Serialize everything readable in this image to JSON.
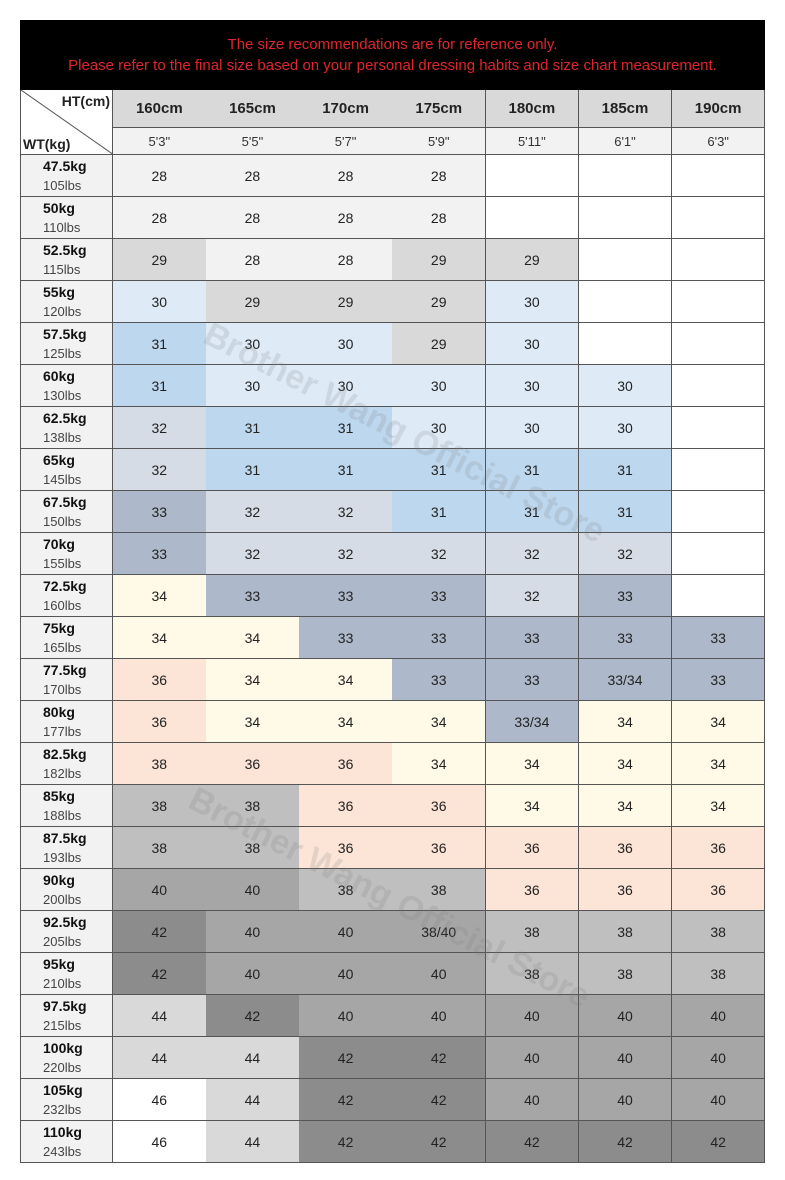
{
  "header": {
    "notice": [
      "The size recommendations are for reference only.",
      "Please refer to the final size based on your personal dressing habits and size chart measurement."
    ]
  },
  "table": {
    "corner_top": "HT(cm)",
    "corner_bottom": "WT(kg)",
    "heights_cm": [
      "160cm",
      "165cm",
      "170cm",
      "175cm",
      "180cm",
      "185cm",
      "190cm"
    ],
    "heights_ft": [
      "5'3\"",
      "5'5\"",
      "5'7\"",
      "5'9\"",
      "5'11\"",
      "6'1\"",
      "6'3\""
    ],
    "rows": [
      {
        "kg": "47.5kg",
        "lbs": "105lbs",
        "cells": [
          "28",
          "28",
          "28",
          "28",
          null,
          null,
          null
        ],
        "colors": [
          "#f2f2f2",
          "#f2f2f2",
          "#f2f2f2",
          "#f2f2f2",
          "#ffffff",
          "#ffffff",
          "#ffffff"
        ]
      },
      {
        "kg": "50kg",
        "lbs": "110lbs",
        "cells": [
          "28",
          "28",
          "28",
          "28",
          null,
          null,
          null
        ],
        "colors": [
          "#f2f2f2",
          "#f2f2f2",
          "#f2f2f2",
          "#f2f2f2",
          "#ffffff",
          "#ffffff",
          "#ffffff"
        ]
      },
      {
        "kg": "52.5kg",
        "lbs": "115lbs",
        "cells": [
          "29",
          "28",
          "28",
          "29",
          "29",
          null,
          null
        ],
        "colors": [
          "#d9d9d9",
          "#f2f2f2",
          "#f2f2f2",
          "#d9d9d9",
          "#d9d9d9",
          "#ffffff",
          "#ffffff"
        ]
      },
      {
        "kg": "55kg",
        "lbs": "120lbs",
        "cells": [
          "30",
          "29",
          "29",
          "29",
          "30",
          null,
          null
        ],
        "colors": [
          "#deebf7",
          "#d9d9d9",
          "#d9d9d9",
          "#d9d9d9",
          "#deebf7",
          "#ffffff",
          "#ffffff"
        ]
      },
      {
        "kg": "57.5kg",
        "lbs": "125lbs",
        "cells": [
          "31",
          "30",
          "30",
          "29",
          "30",
          null,
          null
        ],
        "colors": [
          "#bdd7ee",
          "#deebf7",
          "#deebf7",
          "#d9d9d9",
          "#deebf7",
          "#ffffff",
          "#ffffff"
        ]
      },
      {
        "kg": "60kg",
        "lbs": "130lbs",
        "cells": [
          "31",
          "30",
          "30",
          "30",
          "30",
          "30",
          null
        ],
        "colors": [
          "#bdd7ee",
          "#deebf7",
          "#deebf7",
          "#deebf7",
          "#deebf7",
          "#deebf7",
          "#ffffff"
        ]
      },
      {
        "kg": "62.5kg",
        "lbs": "138lbs",
        "cells": [
          "32",
          "31",
          "31",
          "30",
          "30",
          "30",
          null
        ],
        "colors": [
          "#d6dce5",
          "#bdd7ee",
          "#bdd7ee",
          "#deebf7",
          "#deebf7",
          "#deebf7",
          "#ffffff"
        ]
      },
      {
        "kg": "65kg",
        "lbs": "145lbs",
        "cells": [
          "32",
          "31",
          "31",
          "31",
          "31",
          "31",
          null
        ],
        "colors": [
          "#d6dce5",
          "#bdd7ee",
          "#bdd7ee",
          "#bdd7ee",
          "#bdd7ee",
          "#bdd7ee",
          "#ffffff"
        ]
      },
      {
        "kg": "67.5kg",
        "lbs": "150lbs",
        "cells": [
          "33",
          "32",
          "32",
          "31",
          "31",
          "31",
          null
        ],
        "colors": [
          "#adb9ca",
          "#d6dce5",
          "#d6dce5",
          "#bdd7ee",
          "#bdd7ee",
          "#bdd7ee",
          "#ffffff"
        ]
      },
      {
        "kg": "70kg",
        "lbs": "155lbs",
        "cells": [
          "33",
          "32",
          "32",
          "32",
          "32",
          "32",
          null
        ],
        "colors": [
          "#adb9ca",
          "#d6dce5",
          "#d6dce5",
          "#d6dce5",
          "#d6dce5",
          "#d6dce5",
          "#ffffff"
        ]
      },
      {
        "kg": "72.5kg",
        "lbs": "160lbs",
        "cells": [
          "34",
          "33",
          "33",
          "33",
          "32",
          "33",
          null
        ],
        "colors": [
          "#fff9e8",
          "#adb9ca",
          "#adb9ca",
          "#adb9ca",
          "#d6dce5",
          "#adb9ca",
          "#ffffff"
        ]
      },
      {
        "kg": "75kg",
        "lbs": "165lbs",
        "cells": [
          "34",
          "34",
          "33",
          "33",
          "33",
          "33",
          "33"
        ],
        "colors": [
          "#fff9e8",
          "#fff9e8",
          "#adb9ca",
          "#adb9ca",
          "#adb9ca",
          "#adb9ca",
          "#adb9ca"
        ]
      },
      {
        "kg": "77.5kg",
        "lbs": "170lbs",
        "cells": [
          "36",
          "34",
          "34",
          "33",
          "33",
          "33/34",
          "33"
        ],
        "colors": [
          "#fce4d6",
          "#fff9e8",
          "#fff9e8",
          "#adb9ca",
          "#adb9ca",
          "#adb9ca",
          "#adb9ca"
        ]
      },
      {
        "kg": "80kg",
        "lbs": "177lbs",
        "cells": [
          "36",
          "34",
          "34",
          "34",
          "33/34",
          "34",
          "34"
        ],
        "colors": [
          "#fce4d6",
          "#fff9e8",
          "#fff9e8",
          "#fff9e8",
          "#adb9ca",
          "#fff9e8",
          "#fff9e8"
        ]
      },
      {
        "kg": "82.5kg",
        "lbs": "182lbs",
        "cells": [
          "38",
          "36",
          "36",
          "34",
          "34",
          "34",
          "34"
        ],
        "colors": [
          "#fce4d6",
          "#fce4d6",
          "#fce4d6",
          "#fff9e8",
          "#fff9e8",
          "#fff9e8",
          "#fff9e8"
        ]
      },
      {
        "kg": "85kg",
        "lbs": "188lbs",
        "cells": [
          "38",
          "38",
          "36",
          "36",
          "34",
          "34",
          "34"
        ],
        "colors": [
          "#bfbfbf",
          "#bfbfbf",
          "#fce4d6",
          "#fce4d6",
          "#fff9e8",
          "#fff9e8",
          "#fff9e8"
        ]
      },
      {
        "kg": "87.5kg",
        "lbs": "193lbs",
        "cells": [
          "38",
          "38",
          "36",
          "36",
          "36",
          "36",
          "36"
        ],
        "colors": [
          "#bfbfbf",
          "#bfbfbf",
          "#fce4d6",
          "#fce4d6",
          "#fce4d6",
          "#fce4d6",
          "#fce4d6"
        ]
      },
      {
        "kg": "90kg",
        "lbs": "200lbs",
        "cells": [
          "40",
          "40",
          "38",
          "38",
          "36",
          "36",
          "36"
        ],
        "colors": [
          "#a6a6a6",
          "#a6a6a6",
          "#bfbfbf",
          "#bfbfbf",
          "#fce4d6",
          "#fce4d6",
          "#fce4d6"
        ]
      },
      {
        "kg": "92.5kg",
        "lbs": "205lbs",
        "cells": [
          "42",
          "40",
          "40",
          "38/40",
          "38",
          "38",
          "38"
        ],
        "colors": [
          "#8c8c8c",
          "#a6a6a6",
          "#a6a6a6",
          "#a6a6a6",
          "#bfbfbf",
          "#bfbfbf",
          "#bfbfbf"
        ]
      },
      {
        "kg": "95kg",
        "lbs": "210lbs",
        "cells": [
          "42",
          "40",
          "40",
          "40",
          "38",
          "38",
          "38"
        ],
        "colors": [
          "#8c8c8c",
          "#a6a6a6",
          "#a6a6a6",
          "#a6a6a6",
          "#bfbfbf",
          "#bfbfbf",
          "#bfbfbf"
        ]
      },
      {
        "kg": "97.5kg",
        "lbs": "215lbs",
        "cells": [
          "44",
          "42",
          "40",
          "40",
          "40",
          "40",
          "40"
        ],
        "colors": [
          "#d9d9d9",
          "#8c8c8c",
          "#a6a6a6",
          "#a6a6a6",
          "#a6a6a6",
          "#a6a6a6",
          "#a6a6a6"
        ]
      },
      {
        "kg": "100kg",
        "lbs": "220lbs",
        "cells": [
          "44",
          "44",
          "42",
          "42",
          "40",
          "40",
          "40"
        ],
        "colors": [
          "#d9d9d9",
          "#d9d9d9",
          "#8c8c8c",
          "#8c8c8c",
          "#a6a6a6",
          "#a6a6a6",
          "#a6a6a6"
        ]
      },
      {
        "kg": "105kg",
        "lbs": "232lbs",
        "cells": [
          "46",
          "44",
          "42",
          "42",
          "40",
          "40",
          "40"
        ],
        "colors": [
          "#ffffff",
          "#d9d9d9",
          "#8c8c8c",
          "#8c8c8c",
          "#a6a6a6",
          "#a6a6a6",
          "#a6a6a6"
        ]
      },
      {
        "kg": "110kg",
        "lbs": "243lbs",
        "cells": [
          "46",
          "44",
          "42",
          "42",
          "42",
          "42",
          "42"
        ],
        "colors": [
          "#ffffff",
          "#d9d9d9",
          "#8c8c8c",
          "#8c8c8c",
          "#8c8c8c",
          "#8c8c8c",
          "#8c8c8c"
        ]
      }
    ]
  },
  "watermark": "Brother Wang Official Store"
}
